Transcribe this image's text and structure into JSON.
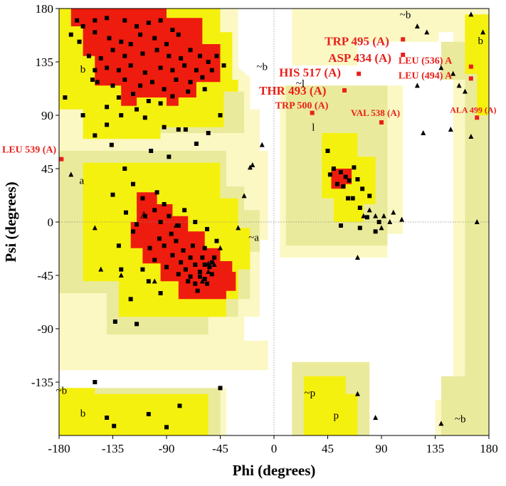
{
  "colors": {
    "core": "#ee1c0e",
    "allowed": "#f5f10f",
    "generous": "#eaea9c",
    "outer": "#fbf8c4",
    "disallowed": "#ffffff",
    "point": "#000000",
    "labeled_point": "#e8201b",
    "label_text": "#e8201b"
  },
  "chart_data": {
    "type": "scatter",
    "title": "",
    "xlabel": "Phi (degrees)",
    "ylabel": "Psi (degrees)",
    "xlim": [
      -180,
      180
    ],
    "ylim": [
      -180,
      180
    ],
    "xticks": [
      -180,
      -135,
      -90,
      -45,
      0,
      45,
      90,
      135,
      180
    ],
    "yticks": [
      -135,
      -90,
      -45,
      0,
      45,
      90,
      135,
      180
    ],
    "xtick_labels": [
      "-180",
      "-135",
      "-90",
      "-45",
      "0",
      "45",
      "90",
      "135",
      "180"
    ],
    "ytick_labels": [
      "-135",
      "-90",
      "-45",
      "0",
      "45",
      "90",
      "135",
      "180"
    ],
    "grid": false,
    "zero_lines": true,
    "legend": "none",
    "region_labels": [
      {
        "text": "b",
        "phi": -160,
        "psi": 126
      },
      {
        "text": "~b",
        "phi": -10,
        "psi": 128
      },
      {
        "text": "~l",
        "phi": 22,
        "psi": 114
      },
      {
        "text": "l",
        "phi": 33,
        "psi": 77
      },
      {
        "text": "a",
        "phi": -161,
        "psi": 32
      },
      {
        "text": "A",
        "phi": -109,
        "psi": 3
      },
      {
        "text": "~a",
        "phi": -17,
        "psi": -16
      },
      {
        "text": "~b",
        "phi": -178,
        "psi": -145
      },
      {
        "text": "b",
        "phi": -160,
        "psi": -164
      },
      {
        "text": "~p",
        "phi": 30,
        "psi": -147
      },
      {
        "text": "p",
        "phi": 52,
        "psi": -166
      },
      {
        "text": "~b",
        "phi": 110,
        "psi": 172
      },
      {
        "text": "b",
        "phi": 173,
        "psi": 150
      },
      {
        "text": "~b",
        "phi": 156,
        "psi": -169
      }
    ],
    "labeled_residues": [
      {
        "label": "TRP 495 (A)",
        "phi": 108,
        "psi": 154
      },
      {
        "label": "ASP 434 (A)",
        "phi": 108,
        "psi": 141
      },
      {
        "label": "HIS 517 (A)",
        "phi": 71,
        "psi": 125
      },
      {
        "label": "THR 493 (A)",
        "phi": 59,
        "psi": 111
      },
      {
        "label": "TRP 500 (A)",
        "phi": 32,
        "psi": 92
      },
      {
        "label": "VAL 538 (A)",
        "phi": 90,
        "psi": 84
      },
      {
        "label": "LEU 539 (A)",
        "phi": -178,
        "psi": 53
      },
      {
        "label": "LEU (536) A",
        "phi": 165,
        "psi": 131
      },
      {
        "label": "LEU (494) A",
        "phi": 165,
        "psi": 121
      },
      {
        "label": "ALA 499 (A)",
        "phi": 170,
        "psi": 88
      }
    ],
    "series": [
      {
        "marker": "square",
        "points": [
          [
            -165,
            170
          ],
          [
            -160,
            165
          ],
          [
            -150,
            170
          ],
          [
            -140,
            172
          ],
          [
            -125,
            170
          ],
          [
            -115,
            165
          ],
          [
            -105,
            168
          ],
          [
            -95,
            170
          ],
          [
            -85,
            162
          ],
          [
            -170,
            158
          ],
          [
            -163,
            152
          ],
          [
            -150,
            160
          ],
          [
            -138,
            155
          ],
          [
            -128,
            152
          ],
          [
            -120,
            150
          ],
          [
            -112,
            158
          ],
          [
            -100,
            155
          ],
          [
            -90,
            150
          ],
          [
            -80,
            158
          ],
          [
            -155,
            140
          ],
          [
            -145,
            138
          ],
          [
            -135,
            145
          ],
          [
            -125,
            140
          ],
          [
            -110,
            142
          ],
          [
            -98,
            145
          ],
          [
            -88,
            140
          ],
          [
            -78,
            138
          ],
          [
            -70,
            145
          ],
          [
            -62,
            140
          ],
          [
            -150,
            128
          ],
          [
            -140,
            130
          ],
          [
            -130,
            128
          ],
          [
            -120,
            132
          ],
          [
            -108,
            126
          ],
          [
            -95,
            130
          ],
          [
            -85,
            128
          ],
          [
            -75,
            132
          ],
          [
            -65,
            128
          ],
          [
            -55,
            135
          ],
          [
            -148,
            118
          ],
          [
            -135,
            115
          ],
          [
            -125,
            120
          ],
          [
            -112,
            115
          ],
          [
            -102,
            118
          ],
          [
            -92,
            112
          ],
          [
            -82,
            120
          ],
          [
            -70,
            118
          ],
          [
            -60,
            122
          ],
          [
            -52,
            128
          ],
          [
            -130,
            105
          ],
          [
            -118,
            108
          ],
          [
            -105,
            102
          ],
          [
            -95,
            100
          ],
          [
            -85,
            106
          ],
          [
            -72,
            110
          ],
          [
            -58,
            112
          ],
          [
            -48,
            140
          ],
          [
            -42,
            132
          ],
          [
            -115,
            95
          ],
          [
            -175,
            105
          ],
          [
            -140,
            97
          ],
          [
            -128,
            90
          ],
          [
            -92,
            80
          ],
          [
            -74,
            78
          ],
          [
            -65,
            66
          ],
          [
            -55,
            75
          ],
          [
            -45,
            90
          ],
          [
            -150,
            73
          ],
          [
            -136,
            65
          ],
          [
            -103,
            60
          ],
          [
            -88,
            55
          ],
          [
            -125,
            45
          ],
          [
            -118,
            32
          ],
          [
            -135,
            23
          ],
          [
            -80,
            78
          ],
          [
            -140,
            82
          ],
          [
            -160,
            90
          ],
          [
            -152,
            120
          ],
          [
            -108,
            88
          ],
          [
            -110,
            20
          ],
          [
            -98,
            25
          ],
          [
            -92,
            15
          ],
          [
            -100,
            10
          ],
          [
            -108,
            5
          ],
          [
            -115,
            -2
          ],
          [
            -95,
            0
          ],
          [
            -88,
            5
          ],
          [
            -80,
            -3
          ],
          [
            -86,
            -10
          ],
          [
            -96,
            -14
          ],
          [
            -104,
            -22
          ],
          [
            -92,
            -20
          ],
          [
            -82,
            -16
          ],
          [
            -76,
            -24
          ],
          [
            -85,
            -28
          ],
          [
            -70,
            -30
          ],
          [
            -78,
            -34
          ],
          [
            -66,
            -36
          ],
          [
            -74,
            -40
          ],
          [
            -62,
            -42
          ],
          [
            -70,
            -46
          ],
          [
            -58,
            -48
          ],
          [
            -66,
            -52
          ],
          [
            -54,
            -38
          ],
          [
            -60,
            -30
          ],
          [
            -52,
            -44
          ],
          [
            -64,
            -58
          ],
          [
            -72,
            -50
          ],
          [
            -80,
            -44
          ],
          [
            -90,
            -38
          ],
          [
            -100,
            -32
          ],
          [
            -68,
            -20
          ],
          [
            -58,
            -22
          ],
          [
            -50,
            -30
          ],
          [
            -110,
            -40
          ],
          [
            -105,
            -50
          ],
          [
            -95,
            -60
          ],
          [
            -120,
            -65
          ],
          [
            -128,
            -40
          ],
          [
            -118,
            -8
          ],
          [
            -124,
            8
          ],
          [
            -75,
            10
          ],
          [
            -66,
            0
          ],
          [
            -56,
            -6
          ],
          [
            -48,
            -16
          ],
          [
            -58,
            -36
          ],
          [
            -62,
            -46
          ],
          [
            -56,
            -52
          ],
          [
            -52,
            -34
          ],
          [
            -130,
            -20
          ],
          [
            -133,
            -84
          ],
          [
            -115,
            -86
          ],
          [
            -140,
            -165
          ],
          [
            -134,
            -172
          ],
          [
            -90,
            -173
          ],
          [
            -79,
            -155
          ],
          [
            -105,
            -162
          ],
          [
            -150,
            -135
          ],
          [
            -45,
            -140
          ],
          [
            53,
            32
          ],
          [
            56,
            42
          ],
          [
            50,
            45
          ],
          [
            60,
            38
          ],
          [
            63,
            35
          ],
          [
            58,
            30
          ],
          [
            47,
            40
          ],
          [
            67,
            46
          ],
          [
            70,
            36
          ],
          [
            74,
            28
          ],
          [
            66,
            20
          ],
          [
            72,
            12
          ],
          [
            78,
            4
          ],
          [
            88,
            0
          ],
          [
            85,
            -8
          ],
          [
            72,
            -5
          ],
          [
            62,
            20
          ],
          [
            80,
            22
          ],
          [
            56,
            -3
          ],
          [
            45,
            60
          ]
        ]
      },
      {
        "marker": "triangle",
        "points": [
          [
            -170,
            40
          ],
          [
            -150,
            -5
          ],
          [
            -145,
            -40
          ],
          [
            -128,
            -45
          ],
          [
            -100,
            -50
          ],
          [
            -82,
            -3
          ],
          [
            -55,
            -42
          ],
          [
            -55,
            -35
          ],
          [
            -60,
            -50
          ],
          [
            -50,
            -36
          ],
          [
            -45,
            -22
          ],
          [
            -30,
            -5
          ],
          [
            -25,
            22
          ],
          [
            -20,
            46
          ],
          [
            -18,
            48
          ],
          [
            -10,
            65
          ],
          [
            75,
            5
          ],
          [
            80,
            10
          ],
          [
            85,
            5
          ],
          [
            90,
            -5
          ],
          [
            92,
            5
          ],
          [
            97,
            0
          ],
          [
            100,
            8
          ],
          [
            107,
            2
          ],
          [
            70,
            -30
          ],
          [
            70,
            -145
          ],
          [
            85,
            -165
          ],
          [
            120,
            165
          ],
          [
            128,
            160
          ],
          [
            140,
            130
          ],
          [
            150,
            125
          ],
          [
            155,
            115
          ],
          [
            160,
            110
          ],
          [
            175,
            160
          ],
          [
            165,
            175
          ],
          [
            120,
            115
          ],
          [
            125,
            75
          ],
          [
            148,
            78
          ],
          [
            165,
            72
          ],
          [
            170,
            0
          ],
          [
            140,
            -170
          ]
        ]
      }
    ]
  }
}
